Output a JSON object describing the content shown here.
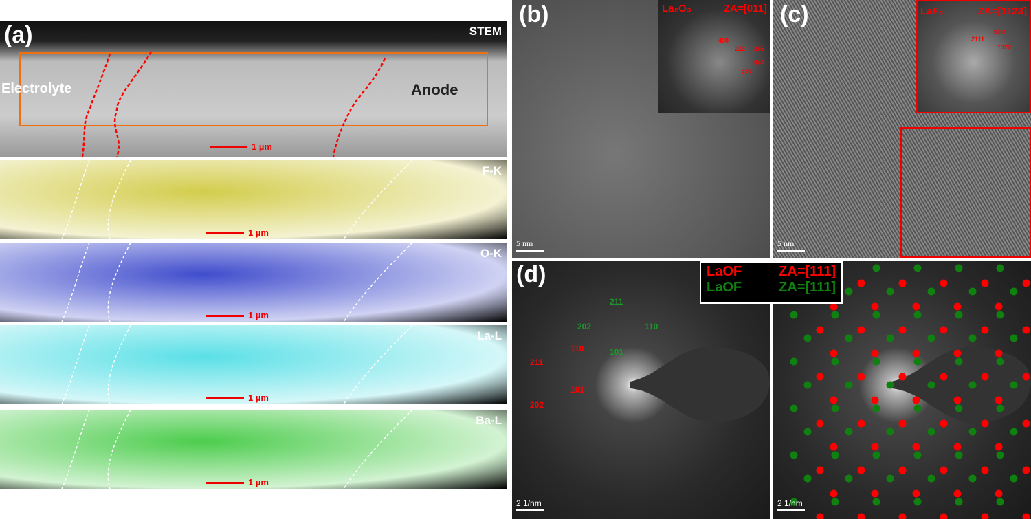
{
  "panel_a": {
    "label": "(a)",
    "stem": "STEM",
    "electrolyte": "Electrolyte",
    "anode": "Anode",
    "scale": "1 µm",
    "maps": [
      {
        "name": "F-K",
        "color": "#c8c020"
      },
      {
        "name": "O-K",
        "color": "#1020c0"
      },
      {
        "name": "La-L",
        "color": "#30d8e0"
      },
      {
        "name": "Ba-L",
        "color": "#20c020"
      }
    ]
  },
  "panel_b": {
    "label": "(b)",
    "phase": "La₂O₃",
    "za": "ZA=[011]",
    "spots": [
      "400",
      "222",
      "266",
      "044",
      "222"
    ],
    "scale": "5 nm"
  },
  "panel_c": {
    "label": "(c)",
    "phase": "LaF₃",
    "za": "ZA=[1123]",
    "spots": [
      "3411",
      "2111",
      "1322"
    ],
    "scale": "5 nm"
  },
  "panel_d": {
    "label": "(d)",
    "legend": [
      {
        "phase": "LaOF",
        "za": "ZA=[111]",
        "color": "#ff0000"
      },
      {
        "phase": "LaOF",
        "za": "ZA=[111]",
        "color": "#108010"
      }
    ],
    "red_spots": [
      "110",
      "211",
      "101",
      "202"
    ],
    "green_spots": [
      "211",
      "202",
      "110",
      "101"
    ],
    "scale": "2 1/nm"
  }
}
